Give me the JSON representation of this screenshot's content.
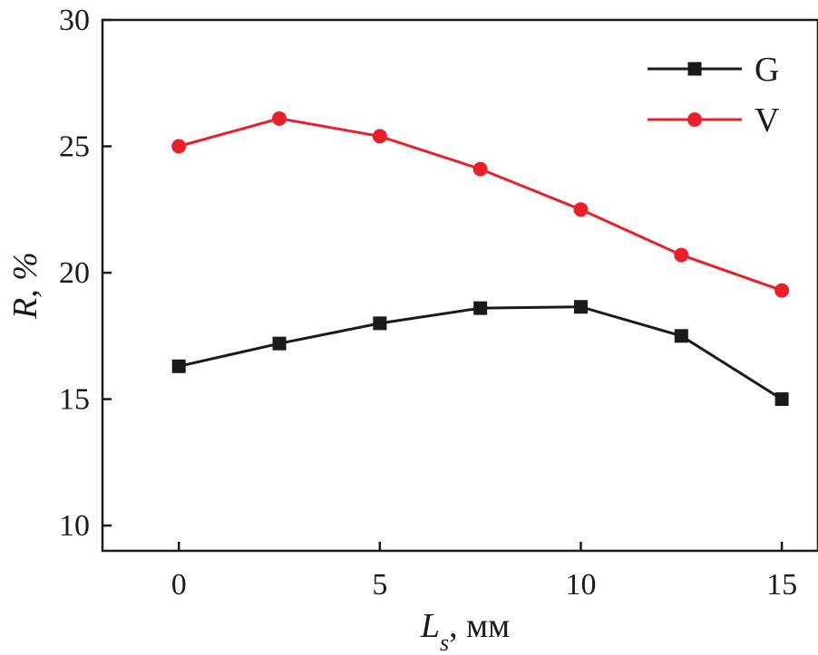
{
  "chart_data": {
    "type": "line",
    "x": [
      0,
      2.5,
      5,
      7.5,
      10,
      12.5,
      15
    ],
    "series": [
      {
        "name": "G",
        "color": "#1a1a1a",
        "marker": "square",
        "values": [
          16.3,
          17.2,
          18.0,
          18.6,
          18.65,
          17.5,
          15.0
        ]
      },
      {
        "name": "V",
        "color": "#e8202a",
        "marker": "circle",
        "values": [
          25.0,
          26.1,
          25.4,
          24.1,
          22.5,
          20.7,
          19.3
        ]
      }
    ],
    "xlabel": {
      "main": "L",
      "sub": "s",
      "rest": ", мм"
    },
    "ylabel": {
      "main": "R",
      "rest": ", %"
    },
    "xlim": [
      -1.9,
      15.9
    ],
    "ylim": [
      9.0,
      30
    ],
    "xticks": [
      0,
      5,
      10,
      15
    ],
    "xtick_labels": [
      "0",
      "5",
      "10",
      "15"
    ],
    "yticks": [
      10,
      15,
      20,
      25,
      30
    ],
    "ytick_labels": [
      "10",
      "15",
      "20",
      "25",
      "30"
    ],
    "legend_position": "top-right",
    "grid": false
  }
}
